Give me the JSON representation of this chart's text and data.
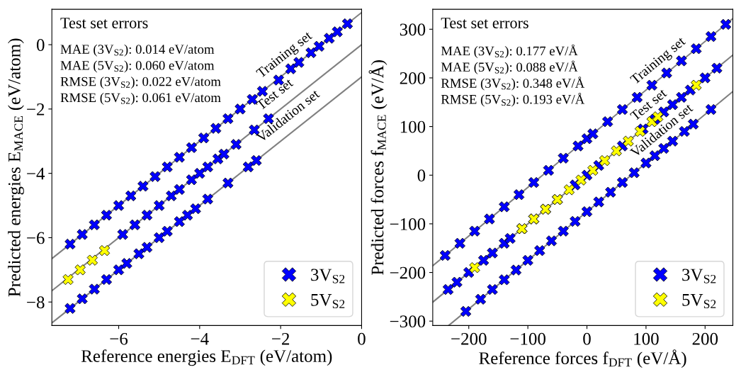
{
  "chart_data": [
    {
      "type": "scatter",
      "xlabel": "Reference energies E$_{DFT}$ (eV/atom)",
      "ylabel": "Predicted energies E$_{MACE}$ (eV/atom)",
      "xlim": [
        -7.65,
        0
      ],
      "ylim": [
        -8.73,
        1.1
      ],
      "xticks": [
        -6,
        -4,
        -2,
        0
      ],
      "yticks": [
        -8,
        -6,
        -4,
        -2,
        0
      ],
      "grid": false,
      "legend": "bottom right",
      "annotations": [
        "Test set errors",
        "MAE (3V$_{S2}$): 0.014 eV/atom",
        "MAE (5V$_{S2}$): 0.060 eV/atom",
        "RMSE (3V$_{S2}$): 0.022 eV/atom",
        "RMSE (5V$_{S2}$): 0.061 eV/atom",
        "Training set",
        "Test set",
        "Validation set"
      ],
      "series": [
        {
          "type": "line",
          "color": "#808080",
          "x": [
            -7.65,
            0
          ],
          "values": [
            -6.65,
            1
          ]
        },
        {
          "type": "line",
          "color": "#808080",
          "x": [
            -7.65,
            0
          ],
          "values": [
            -7.65,
            0
          ]
        },
        {
          "type": "line",
          "color": "#808080",
          "x": [
            -7.65,
            0
          ],
          "values": [
            -8.65,
            -1
          ]
        },
        {
          "name": "3V$_{S2}$",
          "marker": "cross",
          "color": "#0000ff",
          "x": [
            -7.2,
            -6.9,
            -6.6,
            -6.3,
            -6.0,
            -5.7,
            -5.4,
            -5.1,
            -4.8,
            -4.5,
            -4.2,
            -3.9,
            -3.6,
            -3.3,
            -3.0,
            -2.7,
            -2.45,
            -2.05,
            -1.75,
            -1.55,
            -1.25,
            -1.05,
            -0.8,
            -0.6,
            -0.35,
            -5.9,
            -5.6,
            -5.3,
            -5.0,
            -4.7,
            -4.5,
            -4.2,
            -4.0,
            -3.8,
            -3.55,
            -3.4,
            -3.1,
            -2.65,
            -2.3,
            -7.2,
            -6.9,
            -6.6,
            -6.3,
            -6.0,
            -5.8,
            -5.5,
            -5.3,
            -5.0,
            -4.8,
            -4.5,
            -4.3,
            -4.1,
            -3.8,
            -3.3,
            -2.8,
            -2.6
          ],
          "values": [
            -6.2,
            -5.9,
            -5.6,
            -5.3,
            -5.0,
            -4.7,
            -4.4,
            -4.1,
            -3.8,
            -3.5,
            -3.2,
            -2.9,
            -2.6,
            -2.3,
            -2.0,
            -1.7,
            -1.45,
            -1.1,
            -0.75,
            -0.55,
            -0.25,
            -0.05,
            0.2,
            0.4,
            0.65,
            -5.9,
            -5.6,
            -5.3,
            -5.0,
            -4.7,
            -4.5,
            -4.2,
            -4.0,
            -3.8,
            -3.55,
            -3.4,
            -3.1,
            -2.65,
            -2.3,
            -8.2,
            -7.9,
            -7.6,
            -7.3,
            -7.0,
            -6.8,
            -6.5,
            -6.3,
            -6.0,
            -5.8,
            -5.5,
            -5.3,
            -5.1,
            -4.8,
            -4.3,
            -3.8,
            -3.6
          ]
        },
        {
          "name": "5V$_{S2}$",
          "marker": "cross",
          "color": "#ffff00",
          "x": [
            -7.25,
            -6.95,
            -6.65,
            -6.35
          ],
          "values": [
            -7.3,
            -7.0,
            -6.7,
            -6.4
          ]
        }
      ]
    },
    {
      "type": "scatter",
      "xlabel": "Reference forces f$_{DFT}$ (eV/Å)",
      "ylabel": "Predicted forces f$_{MACE}$ (eV/Å)",
      "xlim": [
        -261,
        247
      ],
      "ylim": [
        -309,
        341
      ],
      "xticks": [
        -200,
        -100,
        0,
        100,
        200
      ],
      "yticks": [
        -300,
        -200,
        -100,
        0,
        100,
        200,
        300
      ],
      "grid": false,
      "legend": "bottom right",
      "annotations": [
        "Test set errors",
        "MAE (3V$_{S2}$): 0.177 eV/Å",
        "MAE (5V$_{S2}$): 0.088 eV/Å",
        "RMSE (3V$_{S2}$): 0.348 eV/Å",
        "RMSE (5V$_{S2}$): 0.193 eV/Å",
        "Training set",
        "Test set",
        "Validation set"
      ],
      "series": [
        {
          "type": "line",
          "color": "#808080",
          "x": [
            -261,
            247
          ],
          "values": [
            -186,
            322
          ]
        },
        {
          "type": "line",
          "color": "#808080",
          "x": [
            -261,
            247
          ],
          "values": [
            -261,
            247
          ]
        },
        {
          "type": "line",
          "color": "#808080",
          "x": [
            -234,
            247
          ],
          "values": [
            -309,
            172
          ]
        },
        {
          "name": "3V$_{S2}$",
          "marker": "cross",
          "color": "#0000ff",
          "x": [
            -240,
            -215,
            -190,
            -165,
            -140,
            -115,
            -90,
            -65,
            -40,
            -15,
            0,
            10,
            35,
            60,
            85,
            110,
            135,
            160,
            185,
            210,
            235,
            -235,
            -220,
            -200,
            -175,
            -160,
            -140,
            -130,
            -110,
            -90,
            -70,
            -50,
            -20,
            0,
            20,
            60,
            95,
            115,
            130,
            145,
            160,
            175,
            200,
            220,
            -205,
            -180,
            -160,
            -140,
            -120,
            -100,
            -80,
            -60,
            -40,
            -20,
            0,
            20,
            40,
            60,
            80,
            100,
            115,
            130,
            145,
            165,
            180,
            210
          ],
          "values": [
            -165,
            -140,
            -115,
            -90,
            -65,
            -40,
            -15,
            10,
            35,
            60,
            75,
            85,
            110,
            135,
            160,
            185,
            210,
            235,
            260,
            285,
            310,
            -235,
            -220,
            -200,
            -175,
            -160,
            -140,
            -130,
            -110,
            -90,
            -70,
            -50,
            -20,
            0,
            20,
            60,
            95,
            115,
            130,
            145,
            160,
            175,
            200,
            220,
            -280,
            -255,
            -235,
            -215,
            -195,
            -175,
            -155,
            -135,
            -115,
            -95,
            -75,
            -55,
            -35,
            -15,
            5,
            25,
            40,
            55,
            70,
            90,
            105,
            135
          ]
        },
        {
          "name": "5V$_{S2}$",
          "marker": "cross",
          "color": "#ffff00",
          "x": [
            -190,
            -110,
            -90,
            -70,
            -50,
            -30,
            -10,
            10,
            30,
            50,
            70,
            90,
            110,
            120,
            185
          ],
          "values": [
            -190,
            -110,
            -90,
            -70,
            -50,
            -30,
            -10,
            10,
            30,
            50,
            70,
            90,
            110,
            120,
            185
          ]
        }
      ]
    }
  ]
}
